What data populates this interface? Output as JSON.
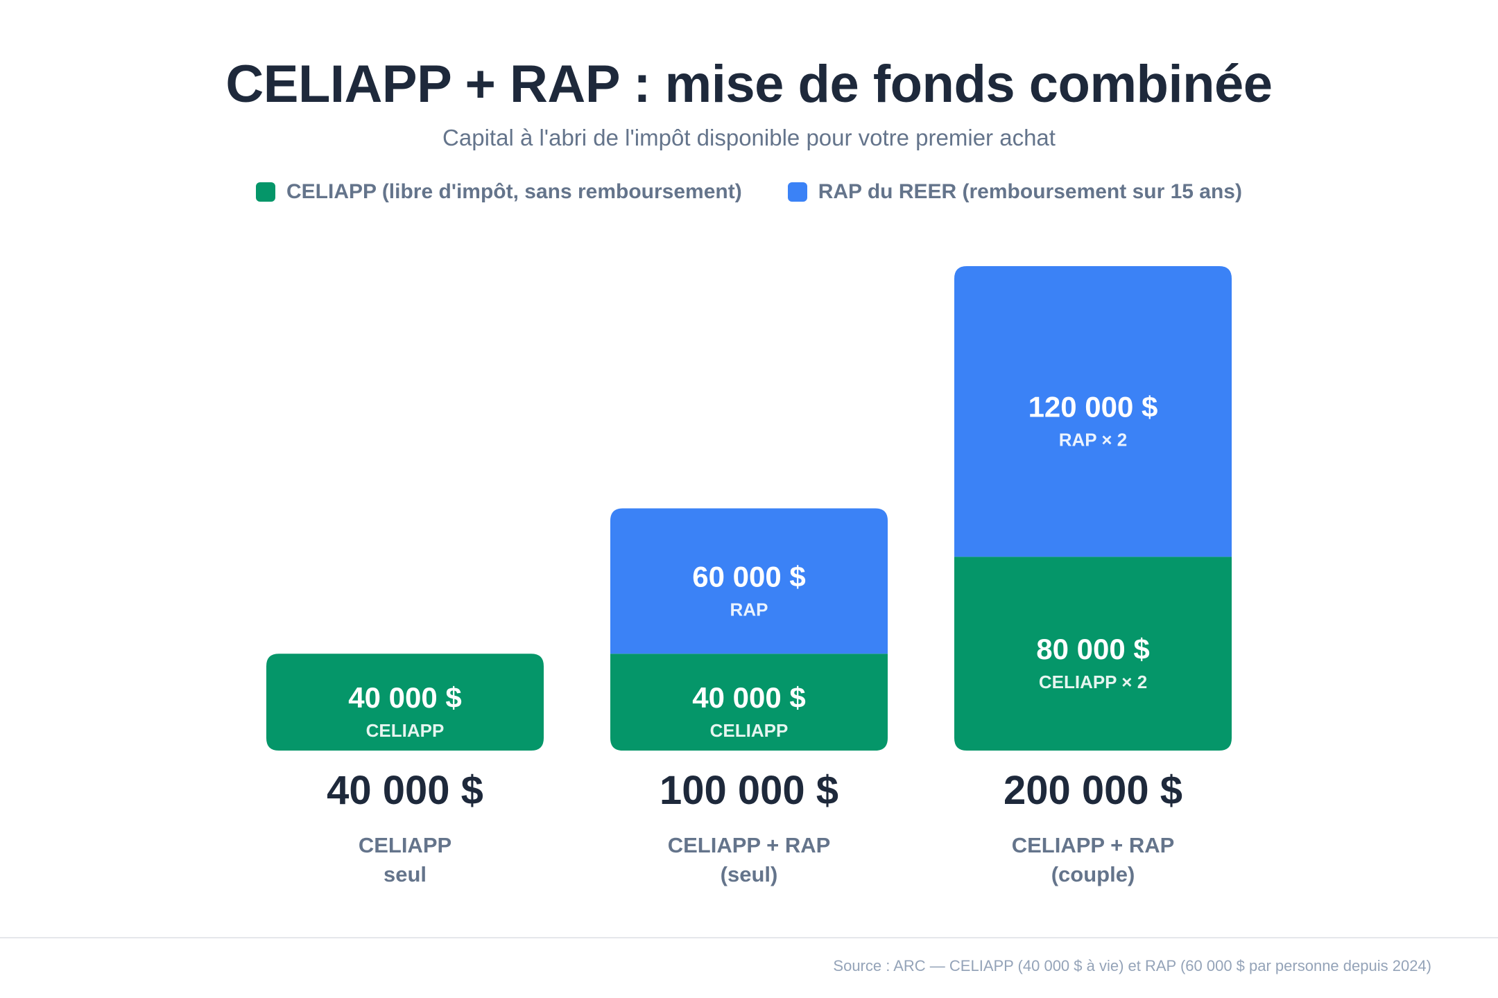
{
  "title": "CELIAPP + RAP : mise de fonds combinée",
  "subtitle": "Capital à l'abri de l'impôt disponible pour votre premier achat",
  "legend": [
    {
      "label": "CELIAPP (libre d'impôt, sans remboursement)",
      "color": "#059669"
    },
    {
      "label": "RAP du REER (remboursement sur 15 ans)",
      "color": "#3b82f6"
    }
  ],
  "source": "Source : ARC — CELIAPP (40 000 $ à vie) et RAP (60 000 $ par personne depuis 2024)",
  "chart_data": {
    "type": "bar",
    "stacked": true,
    "categories": [
      "CELIAPP\nseul",
      "CELIAPP + RAP\n(seul)",
      "CELIAPP + RAP\n(couple)"
    ],
    "category_lines": [
      [
        "CELIAPP",
        "seul"
      ],
      [
        "CELIAPP + RAP",
        "(seul)"
      ],
      [
        "CELIAPP + RAP",
        "(couple)"
      ]
    ],
    "totals": [
      "40 000 $",
      "100 000 $",
      "200 000 $"
    ],
    "series": [
      {
        "name": "CELIAPP (libre d'impôt, sans remboursement)",
        "color": "#059669",
        "values": [
          40000,
          40000,
          80000
        ],
        "value_labels": [
          "40 000 $",
          "40 000 $",
          "80 000 $"
        ],
        "sub_labels": [
          "CELIAPP",
          "CELIAPP",
          "CELIAPP × 2"
        ]
      },
      {
        "name": "RAP du REER (remboursement sur 15 ans)",
        "color": "#3b82f6",
        "values": [
          0,
          60000,
          120000
        ],
        "value_labels": [
          "",
          "60 000 $",
          "120 000 $"
        ],
        "sub_labels": [
          "",
          "RAP",
          "RAP × 2"
        ]
      }
    ],
    "ylim": [
      0,
      200000
    ],
    "grid": false,
    "legend_position": "top"
  }
}
